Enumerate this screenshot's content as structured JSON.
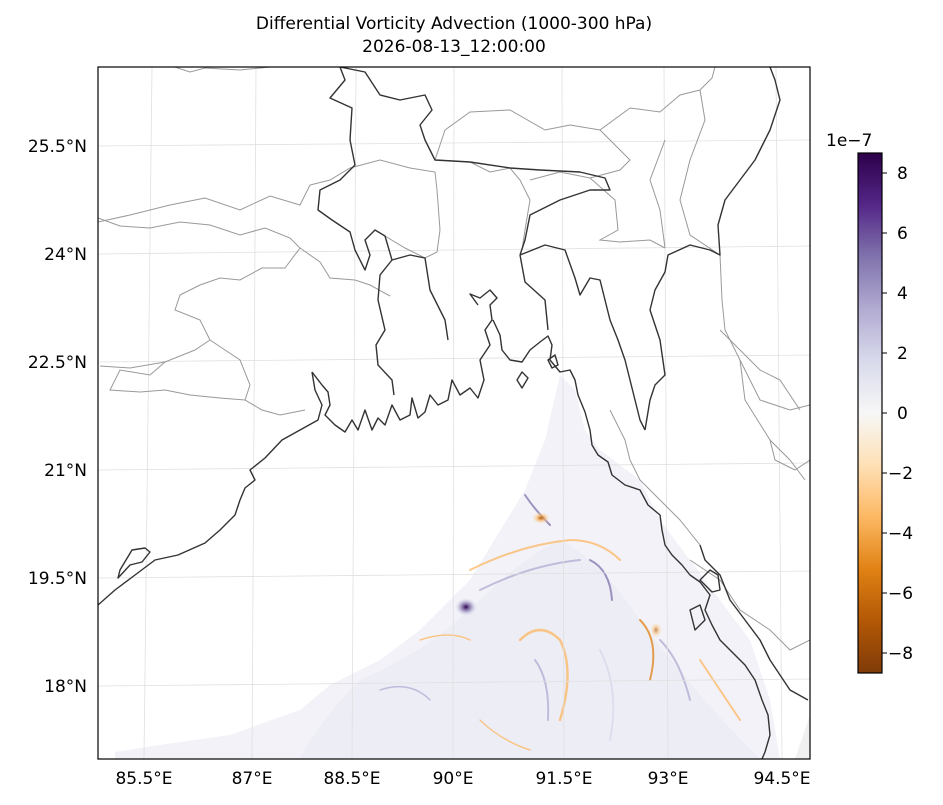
{
  "figure": {
    "title_line1": "Differential Vorticity Advection (1000-300 hPa)",
    "title_line2": "2026-08-13_12:00:00"
  },
  "map": {
    "lon_ticks": [
      "85.5°E",
      "87°E",
      "88.5°E",
      "90°E",
      "91.5°E",
      "93°E",
      "94.5°E"
    ],
    "lat_ticks": [
      "25.5°N",
      "24°N",
      "22.5°N",
      "21°N",
      "19.5°N",
      "18°N"
    ],
    "coastline_color": "#333333",
    "border_color": "#999999",
    "gridline_color": "#e0e0e0"
  },
  "colorbar": {
    "multiplier": "1e−7",
    "ticks": [
      "8",
      "6",
      "4",
      "2",
      "0",
      "−2",
      "−4",
      "−6",
      "−8"
    ],
    "colormap": "PuOr",
    "colors": [
      "#7f3b08",
      "#b35806",
      "#e08214",
      "#fdb863",
      "#fee0b6",
      "#f7f7f7",
      "#d8daeb",
      "#b2abd2",
      "#8073ac",
      "#542788",
      "#2d004b"
    ]
  }
}
